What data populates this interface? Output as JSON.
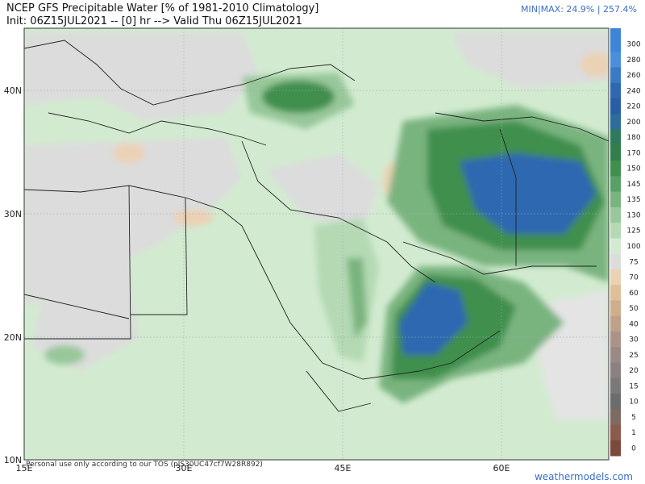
{
  "header": {
    "title": "NCEP GFS Precipitable Water [% of 1981-2010 Climatology]",
    "subtitle": "Init: 06Z15JUL2021 -- [0] hr --> Valid Thu 06Z15JUL2021",
    "minmax": "MIN|MAX: 24.9% | 257.4%"
  },
  "map": {
    "lat_labels": [
      "40N",
      "30N",
      "20N",
      "10N"
    ],
    "lon_labels": [
      "15E",
      "30E",
      "45E",
      "60E"
    ]
  },
  "colorbar": [
    {
      "value": 300,
      "color": "#3f84d6"
    },
    {
      "value": 280,
      "color": "#4b8fd9"
    },
    {
      "value": 260,
      "color": "#3a79c4"
    },
    {
      "value": 240,
      "color": "#2f67b0"
    },
    {
      "value": 220,
      "color": "#2a5ea4"
    },
    {
      "value": 200,
      "color": "#2e6c9a"
    },
    {
      "value": 180,
      "color": "#2f7a5a"
    },
    {
      "value": 170,
      "color": "#327f4a"
    },
    {
      "value": 150,
      "color": "#3f8f4e"
    },
    {
      "value": 145,
      "color": "#5aa066"
    },
    {
      "value": 135,
      "color": "#79b47f"
    },
    {
      "value": 130,
      "color": "#97c79a"
    },
    {
      "value": 125,
      "color": "#b4d9b3"
    },
    {
      "value": 100,
      "color": "#d2ebd0"
    },
    {
      "value": 75,
      "color": "#dcdcdc"
    },
    {
      "value": 70,
      "color": "#ebd2b4"
    },
    {
      "value": 60,
      "color": "#dfbf9a"
    },
    {
      "value": 50,
      "color": "#cfae8e"
    },
    {
      "value": 40,
      "color": "#bfa089"
    },
    {
      "value": 30,
      "color": "#ab9389"
    },
    {
      "value": 25,
      "color": "#9a8a87"
    },
    {
      "value": 20,
      "color": "#8a8282"
    },
    {
      "value": 15,
      "color": "#7a7878"
    },
    {
      "value": 10,
      "color": "#6c6c6c"
    },
    {
      "value": 5,
      "color": "#7d6a60"
    },
    {
      "value": 1,
      "color": "#8a5c4c"
    },
    {
      "value": 0,
      "color": "#7a4a3c"
    }
  ],
  "footer": {
    "notice": "Personal use only according to our TOS (plS30UC47cf7W28R892)",
    "watermark": "weathermodels.com"
  }
}
